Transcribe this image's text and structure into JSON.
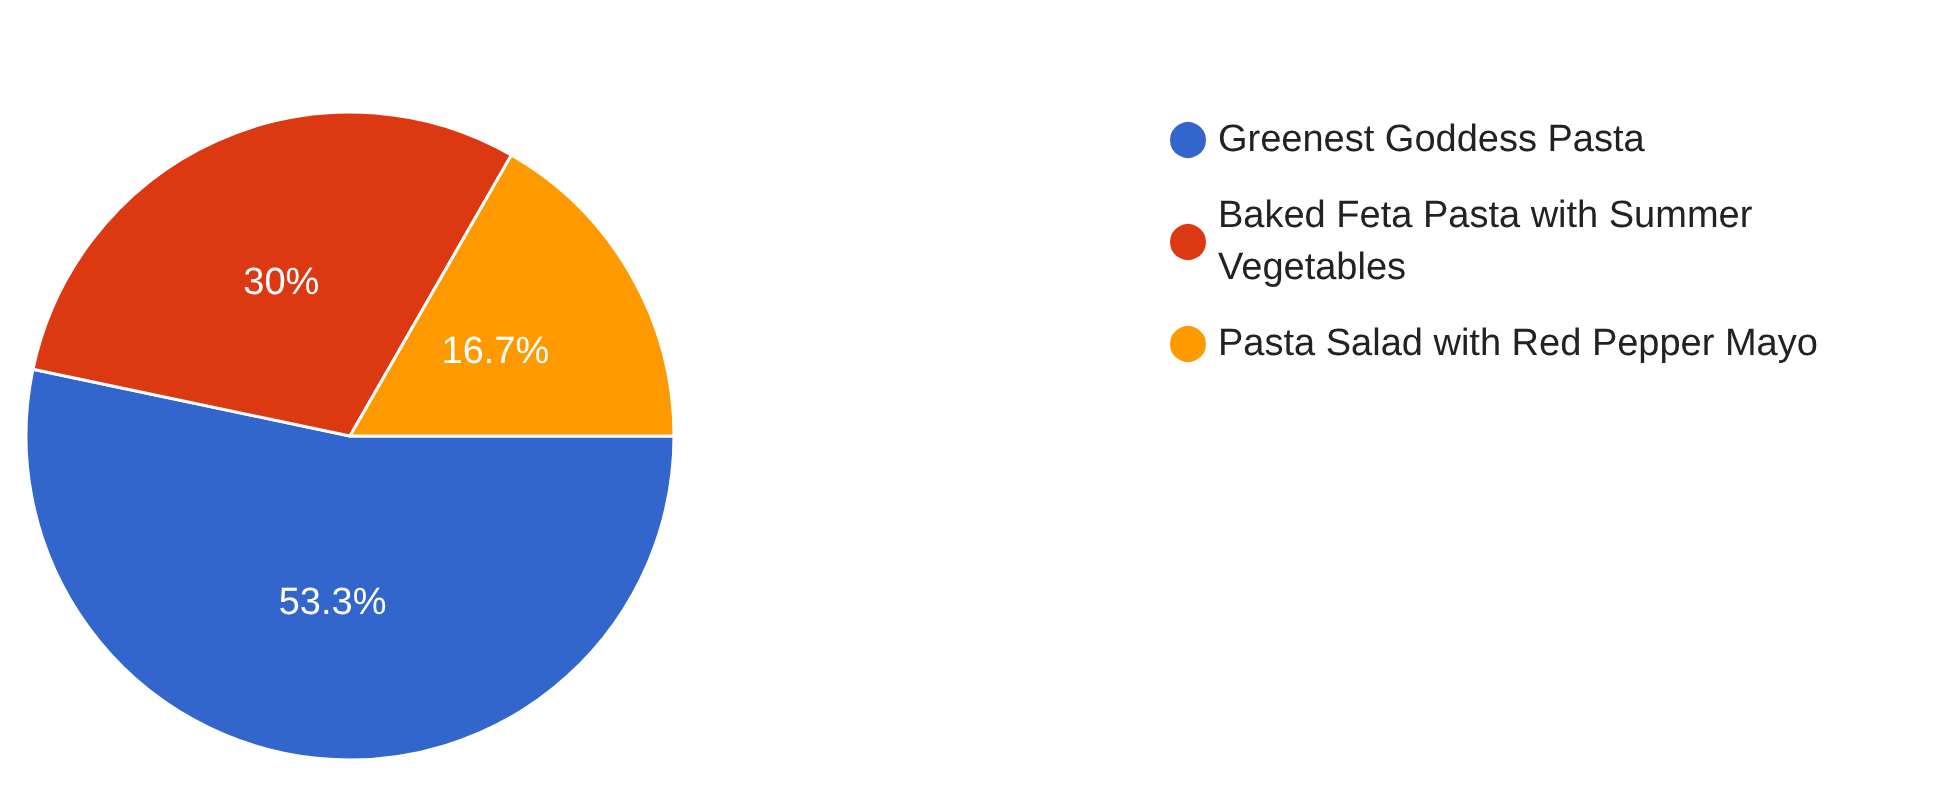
{
  "chart_data": {
    "type": "pie",
    "categories": [
      "Greenest Goddess Pasta",
      "Baked Feta Pasta with Summer Vegetables",
      "Pasta Salad with Red Pepper Mayo"
    ],
    "values": [
      53.3,
      30,
      16.7
    ],
    "colors": [
      "#3366cc",
      "#dc3912",
      "#ff9900"
    ],
    "value_labels": [
      "53.3%",
      "30%",
      "16.7%"
    ],
    "legend": "top right"
  }
}
